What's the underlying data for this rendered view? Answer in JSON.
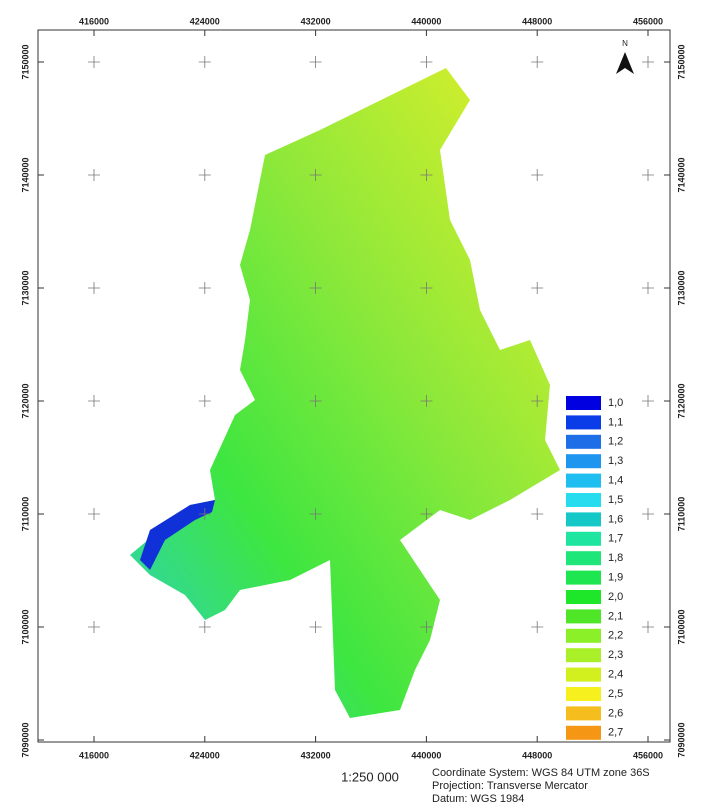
{
  "map": {
    "xticks": [
      416000,
      424000,
      432000,
      440000,
      448000,
      456000
    ],
    "yticks": [
      7150000,
      7140000,
      7130000,
      7120000,
      7110000,
      7100000,
      7090000
    ],
    "north": "N",
    "legend": [
      {
        "label": "1,0",
        "color": "#0000e0"
      },
      {
        "label": "1,1",
        "color": "#0a3ce8"
      },
      {
        "label": "1,2",
        "color": "#1e6ee8"
      },
      {
        "label": "1,3",
        "color": "#1e96f0"
      },
      {
        "label": "1,4",
        "color": "#1ebef0"
      },
      {
        "label": "1,5",
        "color": "#28dcf0"
      },
      {
        "label": "1,6",
        "color": "#14c8c8"
      },
      {
        "label": "1,7",
        "color": "#1ee6a0"
      },
      {
        "label": "1,8",
        "color": "#1ee678"
      },
      {
        "label": "1,9",
        "color": "#1ee650"
      },
      {
        "label": "2,0",
        "color": "#1ee628"
      },
      {
        "label": "2,1",
        "color": "#50e628"
      },
      {
        "label": "2,2",
        "color": "#8cf028"
      },
      {
        "label": "2,3",
        "color": "#aaf028"
      },
      {
        "label": "2,4",
        "color": "#d2f01e"
      },
      {
        "label": "2,5",
        "color": "#f5f01e"
      },
      {
        "label": "2,6",
        "color": "#f5be1e"
      },
      {
        "label": "2,7",
        "color": "#f59614"
      }
    ],
    "scale": "1:250 000",
    "info": [
      "Coordinate System: WGS 84 UTM zone 36S",
      "Projection: Transverse Mercator",
      "Datum: WGS 1984"
    ]
  }
}
